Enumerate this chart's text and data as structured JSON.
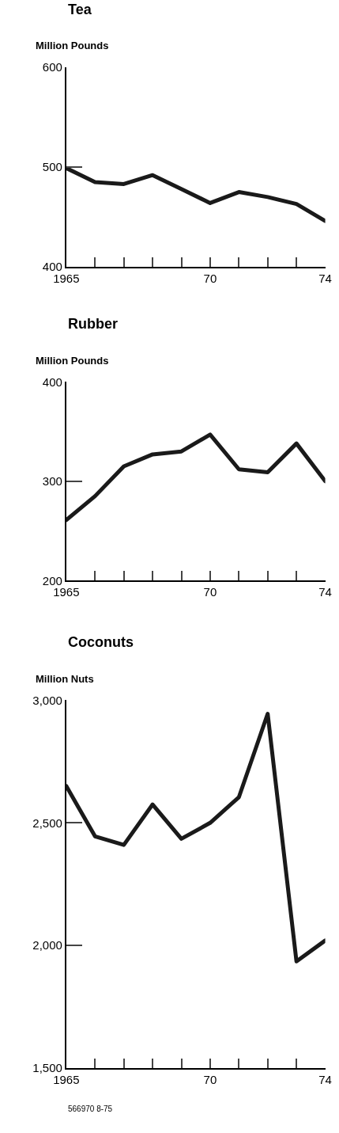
{
  "chart_data": [
    {
      "type": "line",
      "title": "Tea",
      "ylabel": "Million Pounds",
      "x": [
        1965,
        1966,
        1967,
        1968,
        1969,
        1970,
        1971,
        1972,
        1973,
        1974
      ],
      "series": [
        {
          "color": "#1a1a1a",
          "values": [
            499,
            485,
            483,
            492,
            478,
            464,
            475,
            470,
            463,
            446
          ]
        }
      ],
      "xlim": [
        1965,
        1974
      ],
      "xticks": [
        {
          "value": 1965,
          "label": "1965"
        },
        {
          "value": 1966,
          "label": null
        },
        {
          "value": 1967,
          "label": null
        },
        {
          "value": 1968,
          "label": null
        },
        {
          "value": 1969,
          "label": null
        },
        {
          "value": 1970,
          "label": "70"
        },
        {
          "value": 1971,
          "label": null
        },
        {
          "value": 1972,
          "label": null
        },
        {
          "value": 1973,
          "label": null
        },
        {
          "value": 1974,
          "label": "74"
        }
      ],
      "ylim": [
        400,
        600
      ],
      "yticks": [
        400,
        500,
        600
      ],
      "marker": "none",
      "line_style": "solid"
    },
    {
      "type": "line",
      "title": "Rubber",
      "ylabel": "Million Pounds",
      "x": [
        1965,
        1966,
        1967,
        1968,
        1969,
        1970,
        1971,
        1972,
        1973,
        1974
      ],
      "series": [
        {
          "color": "#1a1a1a",
          "values": [
            261,
            285,
            315,
            327,
            330,
            347,
            312,
            309,
            338,
            300
          ]
        }
      ],
      "xlim": [
        1965,
        1974
      ],
      "xticks": [
        {
          "value": 1965,
          "label": "1965"
        },
        {
          "value": 1966,
          "label": null
        },
        {
          "value": 1967,
          "label": null
        },
        {
          "value": 1968,
          "label": null
        },
        {
          "value": 1969,
          "label": null
        },
        {
          "value": 1970,
          "label": "70"
        },
        {
          "value": 1971,
          "label": null
        },
        {
          "value": 1972,
          "label": null
        },
        {
          "value": 1973,
          "label": null
        },
        {
          "value": 1974,
          "label": "74"
        }
      ],
      "ylim": [
        200,
        400
      ],
      "yticks": [
        200,
        300,
        400
      ],
      "marker": "none",
      "line_style": "solid"
    },
    {
      "type": "line",
      "title": "Coconuts",
      "ylabel": "Million Nuts",
      "x": [
        1965,
        1966,
        1967,
        1968,
        1969,
        1970,
        1971,
        1972,
        1973,
        1974
      ],
      "series": [
        {
          "color": "#1a1a1a",
          "values": [
            2650,
            2445,
            2410,
            2575,
            2435,
            2500,
            2605,
            2945,
            1935,
            2020
          ]
        }
      ],
      "xlim": [
        1965,
        1974
      ],
      "xticks": [
        {
          "value": 1965,
          "label": "1965"
        },
        {
          "value": 1966,
          "label": null
        },
        {
          "value": 1967,
          "label": null
        },
        {
          "value": 1968,
          "label": null
        },
        {
          "value": 1969,
          "label": null
        },
        {
          "value": 1970,
          "label": "70"
        },
        {
          "value": 1971,
          "label": null
        },
        {
          "value": 1972,
          "label": null
        },
        {
          "value": 1973,
          "label": null
        },
        {
          "value": 1974,
          "label": "74"
        }
      ],
      "ylim": [
        1500,
        3000
      ],
      "yticks": [
        {
          "value": 1500,
          "label": "1,500"
        },
        {
          "value": 2000,
          "label": "2,000"
        },
        {
          "value": 2500,
          "label": "2,500"
        },
        {
          "value": 3000,
          "label": "3,000"
        }
      ],
      "marker": "none",
      "line_style": "solid",
      "annotations": [
        "566970 8-75"
      ]
    }
  ]
}
